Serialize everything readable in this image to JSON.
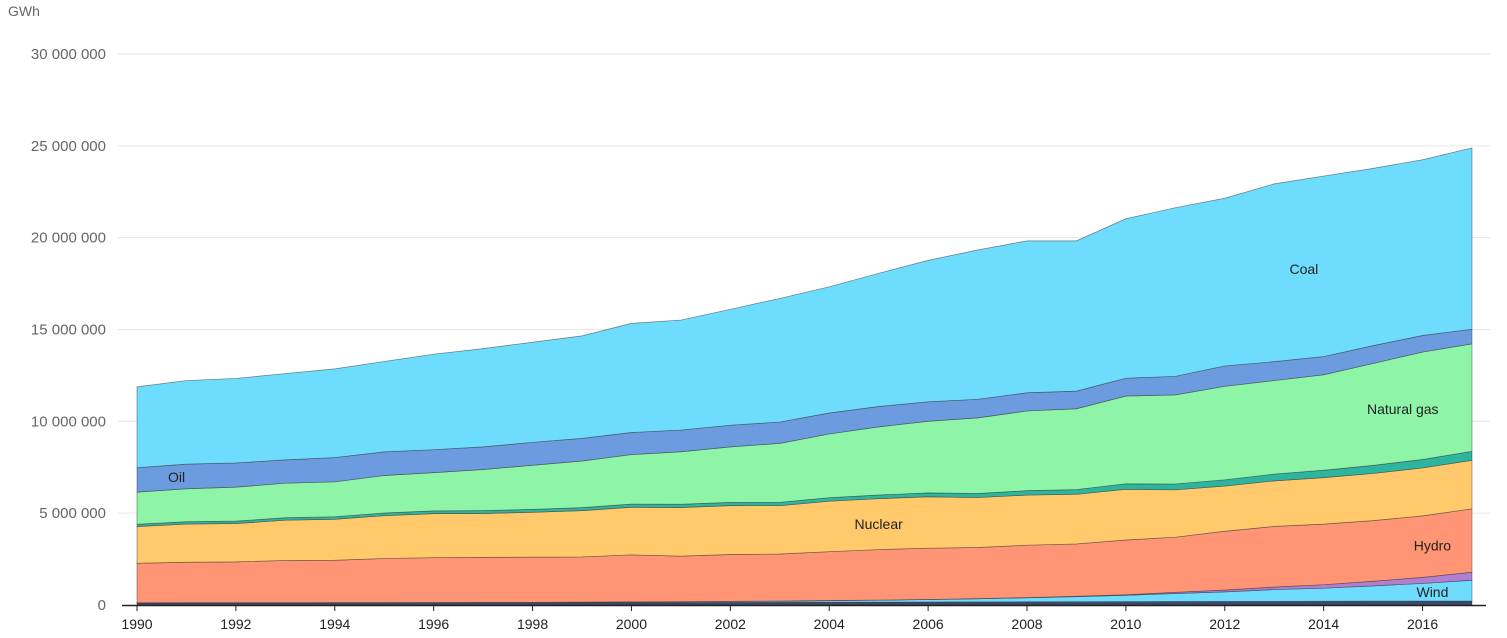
{
  "chart_data": {
    "type": "area",
    "stacked": true,
    "unit": "GWh",
    "x": [
      1990,
      1991,
      1992,
      1993,
      1994,
      1995,
      1996,
      1997,
      1998,
      1999,
      2000,
      2001,
      2002,
      2003,
      2004,
      2005,
      2006,
      2007,
      2008,
      2009,
      2010,
      2011,
      2012,
      2013,
      2014,
      2015,
      2016,
      2017
    ],
    "x_ticks": [
      1990,
      1992,
      1994,
      1996,
      1998,
      2000,
      2002,
      2004,
      2006,
      2008,
      2010,
      2012,
      2014,
      2016
    ],
    "ylim": [
      0,
      30000000
    ],
    "y_ticks": [
      0,
      5000000,
      10000000,
      15000000,
      20000000,
      25000000,
      30000000
    ],
    "y_tick_labels": [
      "0",
      "5 000 000",
      "10 000 000",
      "15 000 000",
      "20 000 000",
      "25 000 000",
      "30 000 000"
    ],
    "grid": true,
    "series": [
      {
        "key": "other",
        "color": "#3d4a6b",
        "values": [
          120000,
          120000,
          120000,
          120000,
          120000,
          125000,
          125000,
          130000,
          130000,
          135000,
          140000,
          140000,
          145000,
          150000,
          155000,
          160000,
          165000,
          170000,
          175000,
          180000,
          185000,
          190000,
          195000,
          200000,
          205000,
          210000,
          215000,
          220000
        ]
      },
      {
        "key": "wind",
        "label": "Wind",
        "color": "#6ddcfd",
        "values": [
          4000,
          5000,
          5000,
          6000,
          7000,
          8000,
          10000,
          12000,
          16000,
          21000,
          31000,
          38000,
          52000,
          63000,
          85000,
          104000,
          133000,
          171000,
          219000,
          276000,
          342000,
          438000,
          521000,
          640000,
          710000,
          833000,
          958000,
          1127000
        ]
      },
      {
        "key": "solar",
        "color": "#b07fd0",
        "values": [
          1000,
          1000,
          1000,
          1000,
          1000,
          1000,
          1000,
          1000,
          1000,
          1000,
          1000,
          2000,
          2000,
          3000,
          3000,
          4000,
          6000,
          8000,
          12000,
          20000,
          32000,
          63000,
          100000,
          139000,
          190000,
          250000,
          330000,
          440000
        ]
      },
      {
        "key": "hydro",
        "label": "Hydro",
        "color": "#ff9575",
        "values": [
          2150000,
          2200000,
          2220000,
          2300000,
          2310000,
          2400000,
          2440000,
          2450000,
          2460000,
          2460000,
          2560000,
          2480000,
          2550000,
          2560000,
          2660000,
          2750000,
          2790000,
          2780000,
          2850000,
          2850000,
          2980000,
          3000000,
          3200000,
          3300000,
          3300000,
          3300000,
          3350000,
          3450000
        ]
      },
      {
        "key": "nuclear",
        "label": "Nuclear",
        "color": "#ffc96c",
        "values": [
          2000000,
          2080000,
          2090000,
          2190000,
          2230000,
          2330000,
          2400000,
          2390000,
          2440000,
          2520000,
          2590000,
          2650000,
          2660000,
          2630000,
          2750000,
          2770000,
          2800000,
          2720000,
          2730000,
          2700000,
          2760000,
          2580000,
          2460000,
          2480000,
          2530000,
          2570000,
          2610000,
          2640000
        ]
      },
      {
        "key": "biofuels",
        "color": "#2db5a0",
        "values": [
          120000,
          125000,
          130000,
          135000,
          140000,
          145000,
          150000,
          155000,
          160000,
          165000,
          170000,
          175000,
          180000,
          185000,
          190000,
          200000,
          210000,
          220000,
          240000,
          260000,
          300000,
          320000,
          340000,
          370000,
          400000,
          440000,
          460000,
          490000
        ]
      },
      {
        "key": "natural_gas",
        "label": "Natural gas",
        "color": "#8df4a8",
        "values": [
          1750000,
          1800000,
          1850000,
          1880000,
          1900000,
          2040000,
          2080000,
          2240000,
          2400000,
          2540000,
          2700000,
          2860000,
          3020000,
          3210000,
          3470000,
          3710000,
          3900000,
          4120000,
          4340000,
          4400000,
          4780000,
          4850000,
          5090000,
          5090000,
          5200000,
          5550000,
          5850000,
          5850000
        ]
      },
      {
        "key": "oil",
        "label": "Oil",
        "color": "#6c9be0",
        "values": [
          1330000,
          1340000,
          1320000,
          1270000,
          1320000,
          1290000,
          1250000,
          1230000,
          1250000,
          1230000,
          1200000,
          1180000,
          1180000,
          1160000,
          1140000,
          1110000,
          1060000,
          1010000,
          990000,
          960000,
          970000,
          1010000,
          1110000,
          1030000,
          990000,
          970000,
          900000,
          800000
        ]
      },
      {
        "key": "coal",
        "label": "Coal",
        "color": "#6ddcfd",
        "values": [
          4400000,
          4550000,
          4600000,
          4700000,
          4830000,
          4920000,
          5200000,
          5350000,
          5450000,
          5580000,
          5940000,
          5990000,
          6310000,
          6730000,
          6870000,
          7250000,
          7700000,
          8130000,
          8270000,
          8180000,
          8680000,
          9180000,
          9130000,
          9680000,
          9830000,
          9650000,
          9570000,
          9870000
        ]
      }
    ],
    "labels": [
      "Oil",
      "Nuclear",
      "Coal",
      "Natural gas",
      "Hydro",
      "Wind"
    ]
  }
}
